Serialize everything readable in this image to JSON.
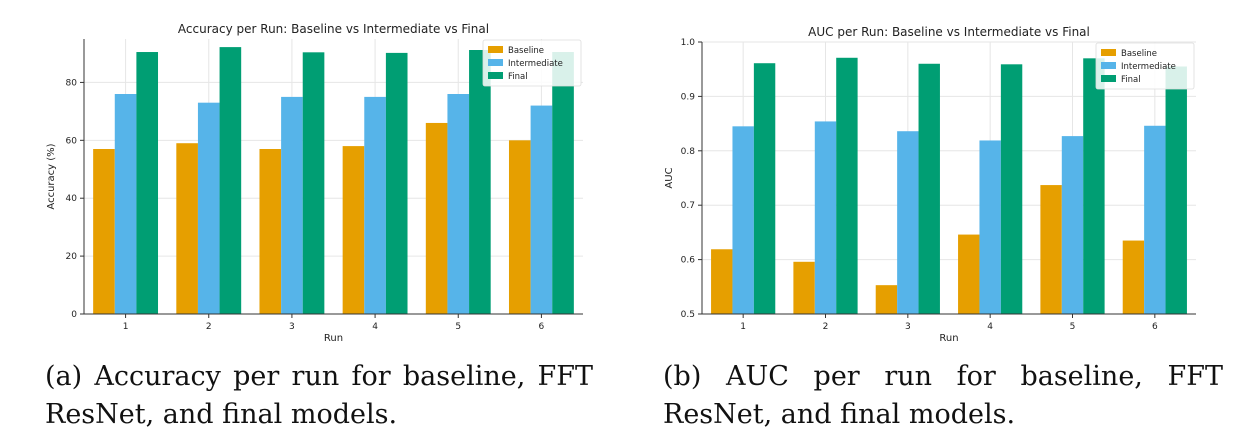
{
  "colors": {
    "baseline": "#E69F00",
    "intermediate": "#56B4E9",
    "final": "#009E73",
    "grid": "#e6e6e6",
    "axis": "#333333"
  },
  "chart_data": [
    {
      "type": "bar",
      "title": "Accuracy per Run: Baseline vs Intermediate vs Final",
      "xlabel": "Run",
      "ylabel": "Accuracy (%)",
      "categories": [
        "1",
        "2",
        "3",
        "4",
        "5",
        "6"
      ],
      "series": [
        {
          "name": "Baseline",
          "values": [
            57,
            59,
            57,
            58,
            66,
            60
          ]
        },
        {
          "name": "Intermediate",
          "values": [
            76,
            73,
            75,
            75,
            76,
            72
          ]
        },
        {
          "name": "Final",
          "values": [
            90.5,
            92.2,
            90.4,
            90.2,
            91.2,
            90.5
          ]
        }
      ],
      "ylim": [
        0,
        95
      ],
      "yticks": [
        0,
        20,
        40,
        60,
        80
      ],
      "grid": true,
      "legend": "top-right",
      "caption": "(a) Accuracy per run for baseline, FFT ResNet, and final models."
    },
    {
      "type": "bar",
      "title": "AUC per Run: Baseline vs Intermediate vs Final",
      "xlabel": "Run",
      "ylabel": "AUC",
      "categories": [
        "1",
        "2",
        "3",
        "4",
        "5",
        "6"
      ],
      "series": [
        {
          "name": "Baseline",
          "values": [
            0.619,
            0.596,
            0.553,
            0.646,
            0.737,
            0.635
          ]
        },
        {
          "name": "Intermediate",
          "values": [
            0.845,
            0.854,
            0.836,
            0.819,
            0.827,
            0.846
          ]
        },
        {
          "name": "Final",
          "values": [
            0.961,
            0.971,
            0.96,
            0.959,
            0.97,
            0.955
          ]
        }
      ],
      "ylim": [
        0.5,
        1.0
      ],
      "yticks": [
        0.5,
        0.6,
        0.7,
        0.8,
        0.9,
        1.0
      ],
      "grid": true,
      "legend": "top-right",
      "caption": "(b) AUC per run for baseline, FFT ResNet, and final models."
    }
  ]
}
